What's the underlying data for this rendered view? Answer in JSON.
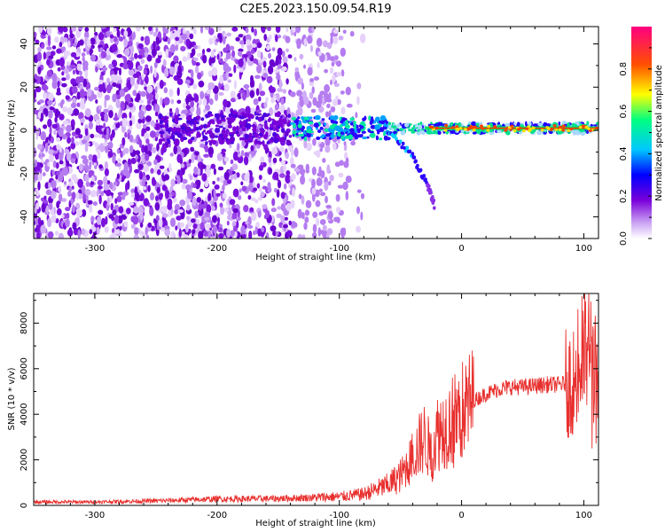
{
  "title": "C2E5.2023.150.09.54.R19",
  "colors": {
    "snr_line": "#e8302e",
    "colormap": [
      "#ffffff",
      "#7a00d9",
      "#0000ff",
      "#00c8ff",
      "#00ff80",
      "#ffff00",
      "#ff5000",
      "#ff0080"
    ]
  },
  "chart_data": [
    {
      "type": "heatmap",
      "xlabel": "Height of straight line (km)",
      "ylabel": "Frequency (Hz)",
      "xlim": [
        -350,
        112
      ],
      "ylim": [
        -50,
        48
      ],
      "x_ticks": [
        -300,
        -200,
        -100,
        0,
        100
      ],
      "x_tick_labels": [
        "-300",
        "-200",
        "-100",
        "0",
        "100"
      ],
      "y_ticks": [
        -40,
        -20,
        0,
        20,
        40
      ],
      "y_tick_labels": [
        "-40",
        "-20",
        "0",
        "20",
        "40"
      ],
      "colorbar": {
        "label": "Normalized spectral amplitude",
        "range": [
          0,
          1
        ],
        "ticks": [
          0.0,
          0.2,
          0.4,
          0.6,
          0.8
        ],
        "tick_labels": [
          "0.0",
          "0.2",
          "0.4",
          "0.6",
          "0.8"
        ]
      },
      "description_points": {
        "noise_region_x": [
          -350,
          -80
        ],
        "signal_band_freq_hz": 1,
        "signal_start_x": -140,
        "doppler_branch": [
          [
            -60,
            0
          ],
          [
            -40,
            -12
          ],
          [
            -28,
            -25
          ],
          [
            -22,
            -35
          ]
        ]
      }
    },
    {
      "type": "line",
      "xlabel": "Height of straight line (km)",
      "ylabel": "SNR (10 * v/v)",
      "xlim": [
        -350,
        112
      ],
      "ylim": [
        0,
        9300
      ],
      "x_ticks": [
        -300,
        -200,
        -100,
        0,
        100
      ],
      "x_tick_labels": [
        "-300",
        "-200",
        "-100",
        "0",
        "100"
      ],
      "y_ticks": [
        0,
        2000,
        4000,
        6000,
        8000
      ],
      "y_tick_labels": [
        "0",
        "2000",
        "4000",
        "6000",
        "8000"
      ],
      "series": [
        {
          "x": [
            -350,
            -300,
            -250,
            -200,
            -150,
            -100,
            -80,
            -60,
            -50,
            -40,
            -35,
            -30,
            -25,
            -20,
            -10,
            0,
            10,
            20,
            30,
            40,
            50,
            60,
            70,
            80,
            90,
            95,
            100,
            105,
            108,
            112
          ],
          "y": [
            150,
            150,
            200,
            280,
            300,
            380,
            500,
            900,
            1300,
            2100,
            2600,
            3000,
            2200,
            3200,
            3600,
            4100,
            4600,
            4900,
            5100,
            5200,
            5200,
            5250,
            5300,
            5300,
            5400,
            5600,
            6500,
            7000,
            6200,
            5200
          ]
        }
      ]
    }
  ]
}
